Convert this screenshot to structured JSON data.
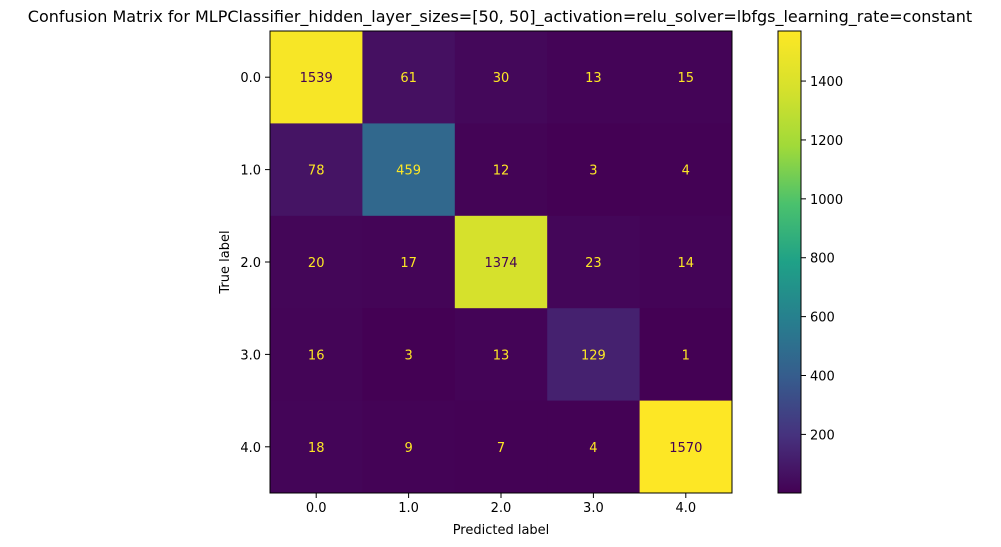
{
  "chart_data": {
    "type": "heatmap",
    "title": "Confusion Matrix for MLPClassifier_hidden_layer_sizes=[50, 50]_activation=relu_solver=lbfgs_learning_rate=constant",
    "xlabel": "Predicted label",
    "ylabel": "True label",
    "x_categories": [
      "0.0",
      "1.0",
      "2.0",
      "3.0",
      "4.0"
    ],
    "y_categories": [
      "0.0",
      "1.0",
      "2.0",
      "3.0",
      "4.0"
    ],
    "matrix": [
      [
        1539,
        61,
        30,
        13,
        15
      ],
      [
        78,
        459,
        12,
        3,
        4
      ],
      [
        20,
        17,
        1374,
        23,
        14
      ],
      [
        16,
        3,
        13,
        129,
        1
      ],
      [
        18,
        9,
        7,
        4,
        1570
      ]
    ],
    "colormap": "viridis",
    "colorbar": {
      "range": [
        1,
        1570
      ],
      "ticks": [
        200,
        400,
        600,
        800,
        1000,
        1200,
        1400
      ]
    },
    "colors": {
      "text_on_dark": "#fde725",
      "text_on_light": "#440154"
    }
  }
}
